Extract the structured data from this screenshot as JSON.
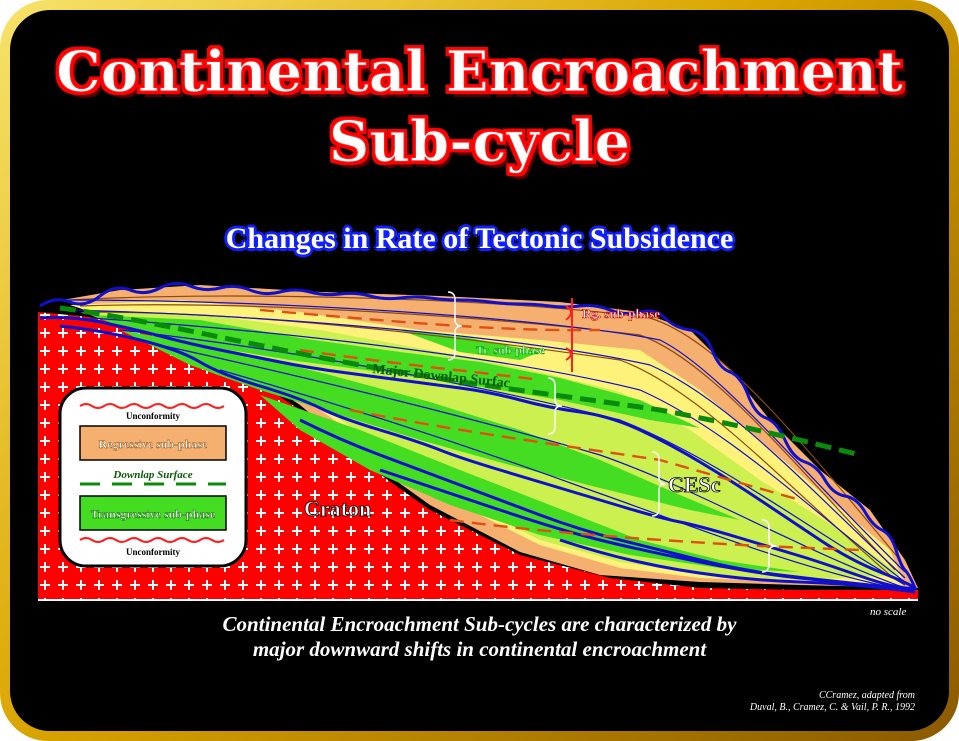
{
  "title_line1": "Continental Encroachment",
  "title_line2": "Sub-cycle",
  "subtitle": "Changes in Rate of Tectonic Subsidence",
  "labels": {
    "rg_subphase": "Rg. sub-phase",
    "tr_subphase": "Tr. sub-phase",
    "major_downlap": "Major Downlap Surfac",
    "cesc": "CESc",
    "craton": "Craton",
    "no_scale": "no scale"
  },
  "legend": {
    "unconformity_top": "Unconformity",
    "regressive": "Regressive sub-phase",
    "downlap": "Downlap Surface",
    "transgressive": "Transgressive sub-phase",
    "unconformity_bottom": "Unconformity"
  },
  "caption_line1": "Continental Encroachment Sub-cycles are characterized by",
  "caption_line2": "major downward shifts in continental encroachment",
  "credit_line1": "CCramez, adapted from",
  "credit_line2": "Duval, B., Cramez, C. & Vail, P. R., 1992",
  "colors": {
    "craton": "#ff0000",
    "regressive": "#f5b070",
    "transgressive": "#44dd22",
    "light_green": "#ccf050",
    "yellow": "#fff27a",
    "blue_line": "#1010cc",
    "downlap": "#1a9a1a",
    "dashed_orange": "#e05010"
  }
}
